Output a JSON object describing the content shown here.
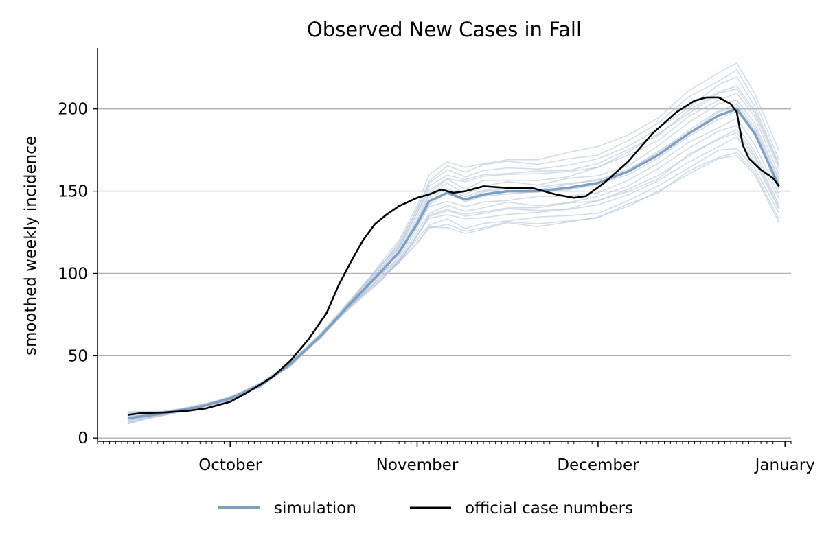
{
  "colors": {
    "simulation": "#7f9fc1",
    "simulation_faint": "#b4c5da",
    "official": "#000000",
    "grid": "#b0b0b0",
    "axis": "#000000"
  },
  "chart_data": {
    "type": "line",
    "title": "Observed New Cases in Fall",
    "xlabel": "",
    "ylabel": "smoothed weekly incidence",
    "x_unit": "date",
    "x_range": [
      "2020-09-09",
      "2021-01-02"
    ],
    "ylim": [
      -2,
      237
    ],
    "y_ticks": [
      0,
      50,
      100,
      150,
      200
    ],
    "y_tick_labels": [
      "0",
      "50",
      "100",
      "150",
      "200"
    ],
    "x_ticks": [
      "2020-10-01",
      "2020-11-01",
      "2020-12-01",
      "2021-01-01"
    ],
    "x_tick_labels": [
      "October",
      "November",
      "December",
      "January"
    ],
    "x_minor_ticks": "daily",
    "grid": "horizontal",
    "legend_position": "bottom-center",
    "legend": [
      "simulation",
      "official case numbers"
    ],
    "series": [
      {
        "name": "simulation",
        "role": "mean",
        "x": [
          "2020-09-14",
          "2020-09-20",
          "2020-09-26",
          "2020-10-01",
          "2020-10-06",
          "2020-10-11",
          "2020-10-16",
          "2020-10-21",
          "2020-10-26",
          "2020-10-29",
          "2020-11-01",
          "2020-11-03",
          "2020-11-06",
          "2020-11-09",
          "2020-11-12",
          "2020-11-16",
          "2020-11-21",
          "2020-11-26",
          "2020-12-01",
          "2020-12-06",
          "2020-12-11",
          "2020-12-16",
          "2020-12-21",
          "2020-12-24",
          "2020-12-27",
          "2020-12-31"
        ],
        "values": [
          12,
          15,
          19,
          24,
          32,
          45,
          62,
          82,
          101,
          113,
          130,
          144,
          149,
          145,
          148,
          150,
          150,
          152,
          155,
          162,
          172,
          185,
          196,
          200,
          185,
          153
        ]
      },
      {
        "name": "official case numbers",
        "x": [
          "2020-09-14",
          "2020-09-16",
          "2020-09-20",
          "2020-09-24",
          "2020-09-27",
          "2020-10-01",
          "2020-10-04",
          "2020-10-08",
          "2020-10-11",
          "2020-10-14",
          "2020-10-17",
          "2020-10-19",
          "2020-10-21",
          "2020-10-23",
          "2020-10-25",
          "2020-10-27",
          "2020-10-29",
          "2020-11-01",
          "2020-11-03",
          "2020-11-05",
          "2020-11-07",
          "2020-11-09",
          "2020-11-12",
          "2020-11-16",
          "2020-11-20",
          "2020-11-24",
          "2020-11-27",
          "2020-11-29",
          "2020-12-02",
          "2020-12-06",
          "2020-12-10",
          "2020-12-14",
          "2020-12-17",
          "2020-12-19",
          "2020-12-21",
          "2020-12-23",
          "2020-12-24",
          "2020-12-25",
          "2020-12-26",
          "2020-12-28",
          "2020-12-30",
          "2020-12-31"
        ],
        "values": [
          14,
          15,
          15.5,
          16.5,
          18,
          22,
          28,
          37,
          47,
          60,
          76,
          93,
          107,
          120,
          130,
          136,
          141,
          146,
          148,
          151,
          149,
          150,
          153,
          152,
          152,
          148,
          146,
          147,
          155,
          168,
          185,
          198,
          205,
          207,
          207,
          203,
          198,
          178,
          170,
          163,
          158,
          153
        ]
      }
    ],
    "ensemble": {
      "name": "simulation",
      "role": "individual runs",
      "count": 18,
      "x": [
        "2020-09-14",
        "2020-09-20",
        "2020-09-26",
        "2020-10-01",
        "2020-10-06",
        "2020-10-11",
        "2020-10-16",
        "2020-10-21",
        "2020-10-26",
        "2020-10-29",
        "2020-11-01",
        "2020-11-03",
        "2020-11-06",
        "2020-11-09",
        "2020-11-12",
        "2020-11-16",
        "2020-11-21",
        "2020-11-26",
        "2020-12-01",
        "2020-12-06",
        "2020-12-11",
        "2020-12-16",
        "2020-12-21",
        "2020-12-24",
        "2020-12-27",
        "2020-12-31"
      ]
    }
  },
  "legend": {
    "simulation_label": "simulation",
    "official_label": "official case numbers"
  }
}
